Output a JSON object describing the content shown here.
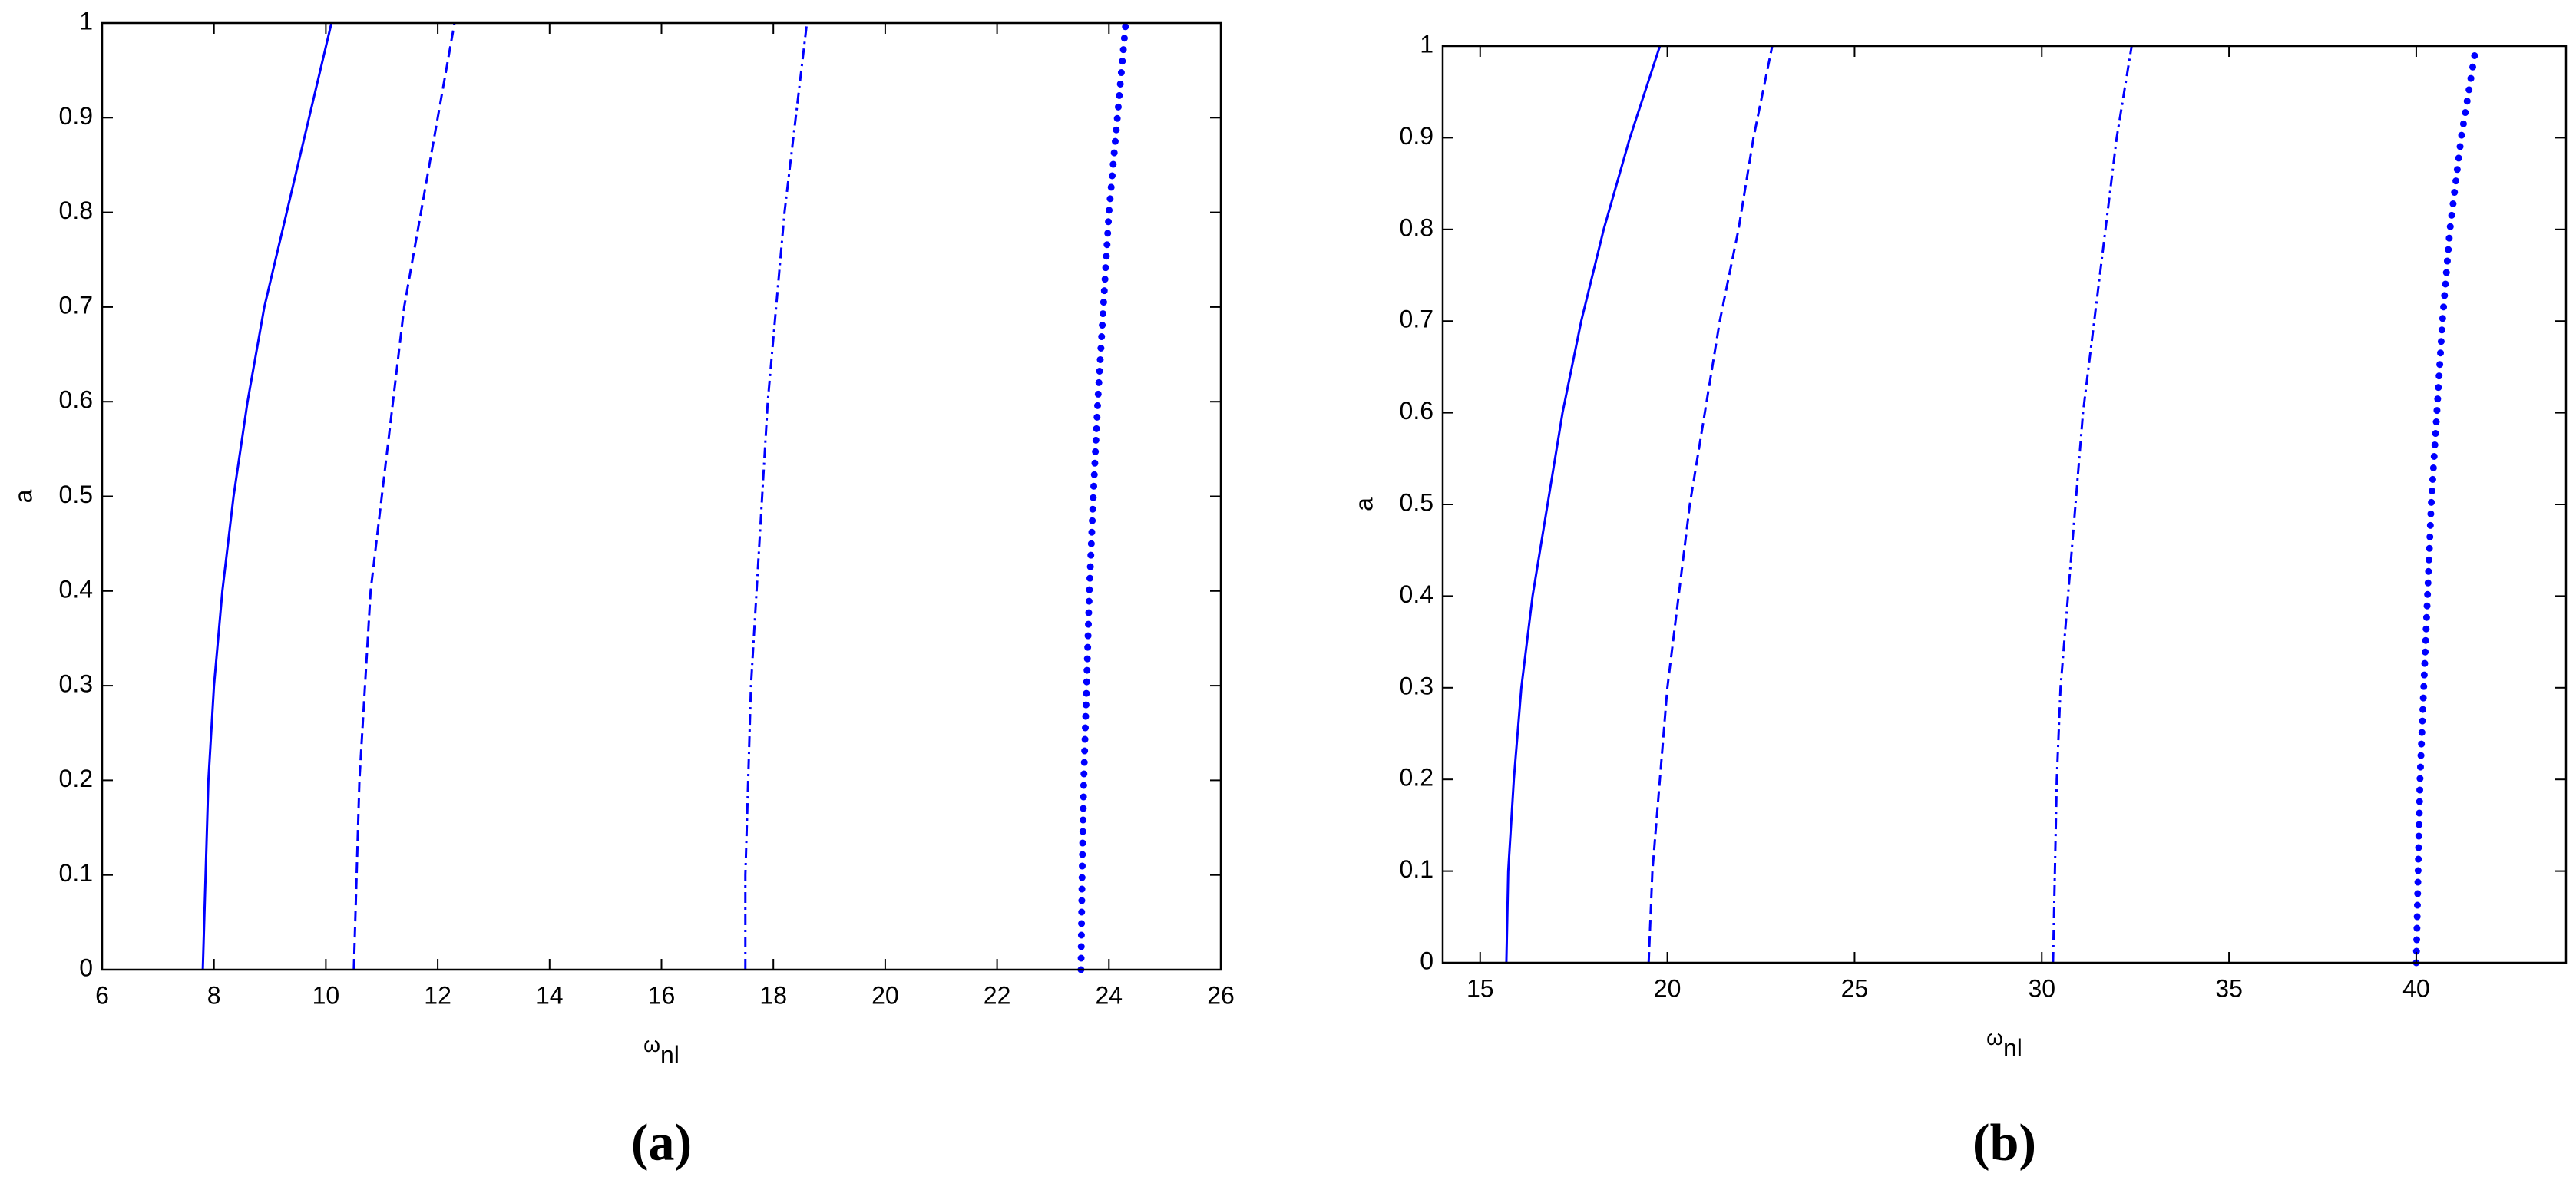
{
  "chart_data": [
    {
      "type": "line",
      "panel_label": "(a)",
      "ylabel": "a",
      "xlabel": "ω",
      "xlabel_sub": "nl",
      "xlim": [
        6,
        26
      ],
      "xticks": [
        6,
        8,
        10,
        12,
        14,
        16,
        18,
        20,
        22,
        24,
        26
      ],
      "ylim": [
        0,
        1
      ],
      "yticks": [
        0,
        0.1,
        0.2,
        0.3,
        0.4,
        0.5,
        0.6,
        0.7,
        0.8,
        0.9,
        1
      ],
      "series": [
        {
          "color": "#0000ff",
          "style": "solid",
          "x": [
            7.8,
            7.85,
            7.9,
            8.0,
            8.15,
            8.35,
            8.6,
            8.9,
            9.3,
            9.7,
            10.1
          ],
          "values": [
            0,
            0.1,
            0.2,
            0.3,
            0.4,
            0.5,
            0.6,
            0.7,
            0.8,
            0.9,
            1
          ]
        },
        {
          "color": "#0000ff",
          "style": "dashed",
          "x": [
            10.5,
            10.55,
            10.6,
            10.7,
            10.8,
            11.0,
            11.2,
            11.4,
            11.7,
            12.0,
            12.3
          ],
          "values": [
            0,
            0.1,
            0.2,
            0.3,
            0.4,
            0.5,
            0.6,
            0.7,
            0.8,
            0.9,
            1
          ]
        },
        {
          "color": "#0000ff",
          "style": "dashdot",
          "x": [
            17.5,
            17.5,
            17.55,
            17.6,
            17.7,
            17.8,
            17.9,
            18.05,
            18.2,
            18.4,
            18.6
          ],
          "values": [
            0,
            0.1,
            0.2,
            0.3,
            0.4,
            0.5,
            0.6,
            0.7,
            0.8,
            0.9,
            1
          ]
        },
        {
          "color": "#0000ff",
          "style": "dotted",
          "x": [
            23.5,
            23.52,
            23.55,
            23.6,
            23.65,
            23.72,
            23.8,
            23.9,
            24.0,
            24.15,
            24.3
          ],
          "values": [
            0,
            0.1,
            0.2,
            0.3,
            0.4,
            0.5,
            0.6,
            0.7,
            0.8,
            0.9,
            1
          ]
        }
      ]
    },
    {
      "type": "line",
      "panel_label": "(b)",
      "ylabel": "a",
      "xlabel": "ω",
      "xlabel_sub": "nl",
      "xlim": [
        14,
        44
      ],
      "xticks": [
        15,
        20,
        25,
        30,
        35,
        40
      ],
      "ylim": [
        0,
        1
      ],
      "yticks": [
        0,
        0.1,
        0.2,
        0.3,
        0.4,
        0.5,
        0.6,
        0.7,
        0.8,
        0.9,
        1
      ],
      "series": [
        {
          "color": "#0000ff",
          "style": "solid",
          "x": [
            15.7,
            15.75,
            15.9,
            16.1,
            16.4,
            16.8,
            17.2,
            17.7,
            18.3,
            19.0,
            19.8
          ],
          "values": [
            0,
            0.1,
            0.2,
            0.3,
            0.4,
            0.5,
            0.6,
            0.7,
            0.8,
            0.9,
            1
          ]
        },
        {
          "color": "#0000ff",
          "style": "dashed",
          "x": [
            19.5,
            19.6,
            19.8,
            20.0,
            20.3,
            20.6,
            21.0,
            21.4,
            21.9,
            22.3,
            22.8
          ],
          "values": [
            0,
            0.1,
            0.2,
            0.3,
            0.4,
            0.5,
            0.6,
            0.7,
            0.8,
            0.9,
            1
          ]
        },
        {
          "color": "#0000ff",
          "style": "dashdot",
          "x": [
            30.3,
            30.35,
            30.4,
            30.5,
            30.7,
            30.9,
            31.1,
            31.4,
            31.7,
            32.0,
            32.4
          ],
          "values": [
            0,
            0.1,
            0.2,
            0.3,
            0.4,
            0.5,
            0.6,
            0.7,
            0.8,
            0.9,
            1
          ]
        },
        {
          "color": "#0000ff",
          "style": "dotted",
          "x": [
            40.0,
            40.05,
            40.1,
            40.2,
            40.3,
            40.4,
            40.55,
            40.7,
            40.9,
            41.2,
            41.6
          ],
          "values": [
            0,
            0.1,
            0.2,
            0.3,
            0.4,
            0.5,
            0.6,
            0.7,
            0.8,
            0.9,
            1
          ]
        }
      ]
    }
  ]
}
